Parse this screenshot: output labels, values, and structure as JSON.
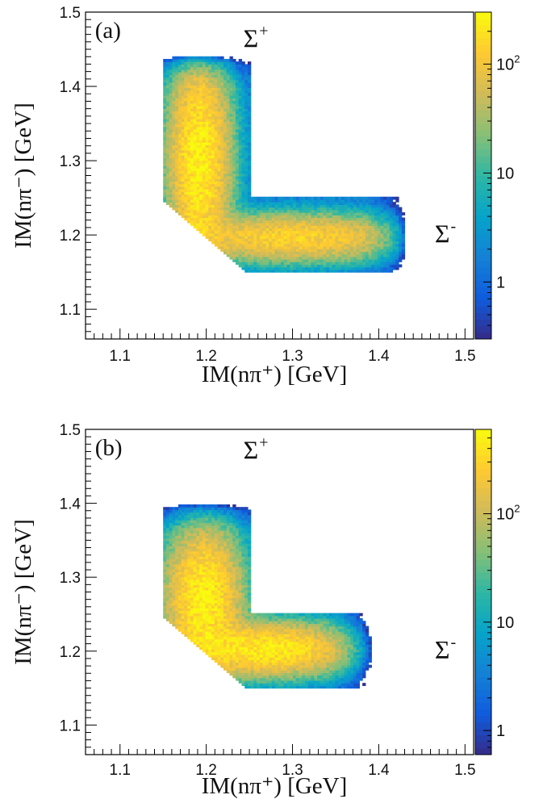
{
  "chart_data": [
    {
      "type": "heatmap",
      "panel_label": "(a)",
      "xlabel": "IM(nπ⁺) [GeV]",
      "ylabel": "IM(nπ⁻) [GeV]",
      "xlim": [
        1.06,
        1.51
      ],
      "ylim": [
        1.06,
        1.5
      ],
      "x_ticks": [
        "1.1",
        "1.2",
        "1.3",
        "1.4",
        "1.5"
      ],
      "y_ticks": [
        "1.1",
        "1.2",
        "1.3",
        "1.4",
        "1.5"
      ],
      "z_scale": "log",
      "z_range": [
        0.3,
        300
      ],
      "colorbar_ticks": [
        {
          "value": 1,
          "base": "1",
          "exp": ""
        },
        {
          "value": 10,
          "base": "10",
          "exp": ""
        },
        {
          "value": 100,
          "base": "10",
          "exp": "2"
        }
      ],
      "annotations": [
        {
          "base": "Σ",
          "sup": "+",
          "x": 1.243,
          "y": 1.453
        },
        {
          "base": "Σ",
          "sup": "-",
          "x": 1.465,
          "y": 1.19
        }
      ],
      "regions": {
        "vertical_band": {
          "x_range": [
            1.15,
            1.25
          ],
          "y_range": [
            1.25,
            1.44
          ]
        },
        "horizontal_band": {
          "x_range": [
            1.25,
            1.43
          ],
          "y_range": [
            1.15,
            1.25
          ]
        },
        "diagonal_cut_sum": 2.395
      },
      "peaks": [
        {
          "name": "Σ+ band",
          "x": 1.192,
          "y": 1.3,
          "sigma_x": 0.018,
          "sigma_y": 0.075,
          "amplitude": 260
        },
        {
          "name": "Σ- band",
          "x": 1.3,
          "y": 1.197,
          "sigma_x": 0.07,
          "sigma_y": 0.016,
          "amplitude": 150
        }
      ],
      "background_level": 1.5
    },
    {
      "type": "heatmap",
      "panel_label": "(b)",
      "xlabel": "IM(nπ⁺) [GeV]",
      "ylabel": "IM(nπ⁻) [GeV]",
      "xlim": [
        1.06,
        1.51
      ],
      "ylim": [
        1.06,
        1.5
      ],
      "x_ticks": [
        "1.1",
        "1.2",
        "1.3",
        "1.4",
        "1.5"
      ],
      "y_ticks": [
        "1.1",
        "1.2",
        "1.3",
        "1.4",
        "1.5"
      ],
      "z_scale": "log",
      "z_range": [
        0.6,
        600
      ],
      "colorbar_ticks": [
        {
          "value": 1,
          "base": "1",
          "exp": ""
        },
        {
          "value": 10,
          "base": "10",
          "exp": ""
        },
        {
          "value": 100,
          "base": "10",
          "exp": "2"
        }
      ],
      "annotations": [
        {
          "base": "Σ",
          "sup": "+",
          "x": 1.243,
          "y": 1.46
        },
        {
          "base": "Σ",
          "sup": "-",
          "x": 1.465,
          "y": 1.19
        }
      ],
      "regions": {
        "vertical_band": {
          "x_range": [
            1.15,
            1.25
          ],
          "y_range": [
            1.25,
            1.4
          ]
        },
        "horizontal_band": {
          "x_range": [
            1.25,
            1.39
          ],
          "y_range": [
            1.15,
            1.25
          ]
        },
        "diagonal_cut_sum": 2.395
      },
      "peaks": [
        {
          "name": "Σ+ band",
          "x": 1.197,
          "y": 1.27,
          "sigma_x": 0.022,
          "sigma_y": 0.05,
          "amplitude": 520
        },
        {
          "name": "Σ- band",
          "x": 1.27,
          "y": 1.203,
          "sigma_x": 0.05,
          "sigma_y": 0.018,
          "amplitude": 480
        }
      ],
      "background_level": 2.5
    }
  ]
}
